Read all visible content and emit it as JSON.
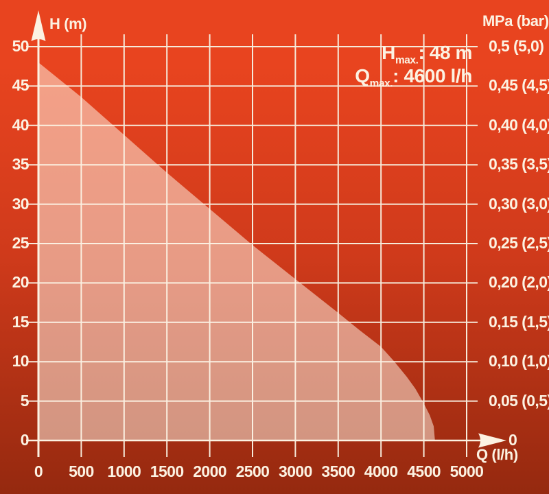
{
  "header": {
    "line1": {
      "base": "H",
      "sub": "max.",
      "rest": ": 48 m"
    },
    "line2": {
      "base": "Q",
      "sub": "max.",
      "rest": ": 4600 l/h"
    }
  },
  "axes": {
    "y_title": "H (m)",
    "x_title": "Q (l/h)",
    "right_title": "MPa (bar)",
    "arrow_zero": "0"
  },
  "colors": {
    "bg_top": "#e8441f",
    "bg_mid": "#cf3a1b",
    "bg_bottom": "#95290f",
    "grid_line": "#f6eada",
    "text": "#fcf2e2",
    "area_fill": "rgba(255,246,232,0.52)"
  },
  "chart_data": {
    "type": "area",
    "xlabel": "Q (l/h)",
    "ylabel": "H (m)",
    "y2label": "MPa (bar)",
    "xlim": [
      0,
      5000
    ],
    "ylim": [
      0,
      50
    ],
    "grid": true,
    "x_ticks": [
      0,
      500,
      1000,
      1500,
      2000,
      2500,
      3000,
      3500,
      4000,
      4500,
      5000
    ],
    "y_ticks": [
      0,
      5,
      10,
      15,
      20,
      25,
      30,
      35,
      40,
      45,
      50
    ],
    "y2_tick_labels": [
      "0,05 (0,5)",
      "0,10 (1,0)",
      "0,15 (1,5)",
      "0,20 (2,0)",
      "0,25 (2,5)",
      "0,30 (3,0)",
      "0,35 (3,5)",
      "0,40 (4,0)",
      "0,45 (4,5)",
      "0,5 (5,0)"
    ],
    "series": [
      {
        "name": "pump-head-vs-flow",
        "x": [
          0,
          500,
          1000,
          1500,
          2000,
          2500,
          3000,
          3500,
          3750,
          4000,
          4150,
          4300,
          4400,
          4500,
          4570,
          4615,
          4630
        ],
        "y": [
          48,
          43.6,
          38.8,
          34,
          29.4,
          24.8,
          20.5,
          16.2,
          14,
          11.9,
          10.1,
          8.1,
          6.6,
          4.7,
          3.2,
          1.8,
          0
        ]
      }
    ],
    "annotations": [
      "Hmax.: 48 m",
      "Qmax.: 4600 l/h"
    ],
    "h_max_m": 48,
    "q_max_lh": 4600
  }
}
